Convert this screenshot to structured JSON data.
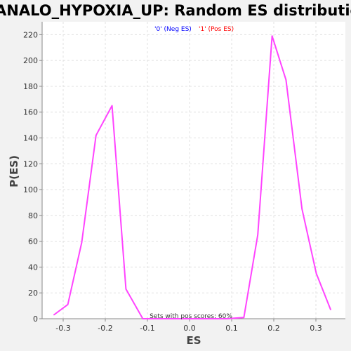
{
  "chart_data": {
    "type": "line",
    "title": "MANALO_HYPOXIA_UP: Random ES distribution",
    "xlabel": "ES",
    "ylabel": "P(ES)",
    "xlim": [
      -0.35,
      0.37
    ],
    "ylim": [
      0,
      230
    ],
    "x_ticks": [
      -0.3,
      -0.2,
      -0.1,
      0.0,
      0.1,
      0.2,
      0.3
    ],
    "x_tick_labels": [
      "-0.3",
      "-0.2",
      "-0.1",
      "0.0",
      "0.1",
      "0.2",
      "0.3"
    ],
    "y_ticks": [
      0,
      20,
      40,
      60,
      80,
      100,
      120,
      140,
      160,
      180,
      200,
      220
    ],
    "y_tick_labels": [
      "0",
      "20",
      "40",
      "60",
      "80",
      "100",
      "120",
      "140",
      "160",
      "180",
      "200",
      "220"
    ],
    "grid": true,
    "legend": [
      {
        "label": "'0' (Neg ES)",
        "color": "#0000ff"
      },
      {
        "label": "'1' (Pos ES)",
        "color": "#ff0000"
      }
    ],
    "annotation": "Sets with pos scores: 60%",
    "series": [
      {
        "color": "#ff44ff",
        "x": [
          -0.322,
          -0.289,
          -0.256,
          -0.222,
          -0.184,
          -0.151,
          -0.111,
          -0.078,
          -0.044,
          -0.011,
          0.022,
          0.056,
          0.089,
          0.129,
          0.162,
          0.196,
          0.229,
          0.267,
          0.301,
          0.335
        ],
        "y": [
          3,
          11,
          59,
          142,
          165,
          23,
          0,
          0,
          0,
          0,
          0,
          0,
          0,
          1,
          65,
          219,
          185,
          85,
          35,
          7
        ]
      }
    ]
  },
  "colors": {
    "line": "#ff44ff",
    "background": "#f2f2f2",
    "plot_background": "#ffffff",
    "grid": "#e0e0e0"
  }
}
